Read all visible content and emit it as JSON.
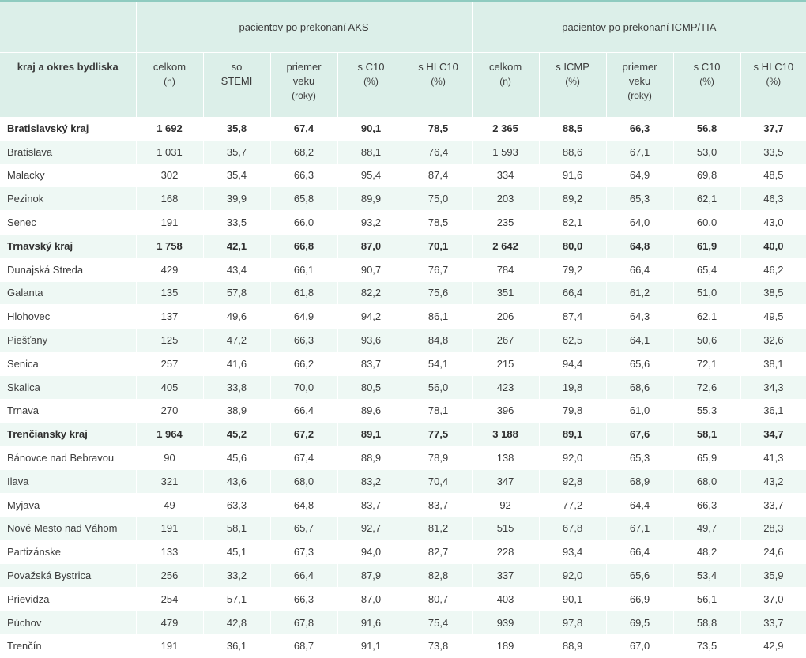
{
  "groups": {
    "aks": "pacientov po prekonaní AKS",
    "icmp": "pacientov po prekonaní ICMP/TIA"
  },
  "columns": {
    "name": "kraj a okres bydliska",
    "aks": [
      {
        "l1": "celkom",
        "l2": "(n)"
      },
      {
        "l1": "so",
        "l2": "STEMI"
      },
      {
        "l1": "priemer",
        "l2": "veku",
        "l3": "(roky)"
      },
      {
        "l1": "s C10",
        "l2": "(%)"
      },
      {
        "l1": "s HI C10",
        "l2": "(%)"
      }
    ],
    "icmp": [
      {
        "l1": "celkom",
        "l2": "(n)"
      },
      {
        "l1": "s ICMP",
        "l2": "(%)"
      },
      {
        "l1": "priemer",
        "l2": "veku",
        "l3": "(roky)"
      },
      {
        "l1": "s C10",
        "l2": "(%)"
      },
      {
        "l1": "s HI C10",
        "l2": "(%)"
      }
    ]
  },
  "rows": [
    {
      "name": "Bratislavský kraj",
      "region": true,
      "values": [
        "1 692",
        "35,8",
        "67,4",
        "90,1",
        "78,5",
        "2 365",
        "88,5",
        "66,3",
        "56,8",
        "37,7"
      ]
    },
    {
      "name": "Bratislava",
      "region": false,
      "values": [
        "1 031",
        "35,7",
        "68,2",
        "88,1",
        "76,4",
        "1 593",
        "88,6",
        "67,1",
        "53,0",
        "33,5"
      ]
    },
    {
      "name": "Malacky",
      "region": false,
      "values": [
        "302",
        "35,4",
        "66,3",
        "95,4",
        "87,4",
        "334",
        "91,6",
        "64,9",
        "69,8",
        "48,5"
      ]
    },
    {
      "name": "Pezinok",
      "region": false,
      "values": [
        "168",
        "39,9",
        "65,8",
        "89,9",
        "75,0",
        "203",
        "89,2",
        "65,3",
        "62,1",
        "46,3"
      ]
    },
    {
      "name": "Senec",
      "region": false,
      "values": [
        "191",
        "33,5",
        "66,0",
        "93,2",
        "78,5",
        "235",
        "82,1",
        "64,0",
        "60,0",
        "43,0"
      ]
    },
    {
      "name": "Trnavský kraj",
      "region": true,
      "values": [
        "1 758",
        "42,1",
        "66,8",
        "87,0",
        "70,1",
        "2 642",
        "80,0",
        "64,8",
        "61,9",
        "40,0"
      ]
    },
    {
      "name": "Dunajská Streda",
      "region": false,
      "values": [
        "429",
        "43,4",
        "66,1",
        "90,7",
        "76,7",
        "784",
        "79,2",
        "66,4",
        "65,4",
        "46,2"
      ]
    },
    {
      "name": "Galanta",
      "region": false,
      "values": [
        "135",
        "57,8",
        "61,8",
        "82,2",
        "75,6",
        "351",
        "66,4",
        "61,2",
        "51,0",
        "38,5"
      ]
    },
    {
      "name": "Hlohovec",
      "region": false,
      "values": [
        "137",
        "49,6",
        "64,9",
        "94,2",
        "86,1",
        "206",
        "87,4",
        "64,3",
        "62,1",
        "49,5"
      ]
    },
    {
      "name": "Piešťany",
      "region": false,
      "values": [
        "125",
        "47,2",
        "66,3",
        "93,6",
        "84,8",
        "267",
        "62,5",
        "64,1",
        "50,6",
        "32,6"
      ]
    },
    {
      "name": "Senica",
      "region": false,
      "values": [
        "257",
        "41,6",
        "66,2",
        "83,7",
        "54,1",
        "215",
        "94,4",
        "65,6",
        "72,1",
        "38,1"
      ]
    },
    {
      "name": "Skalica",
      "region": false,
      "values": [
        "405",
        "33,8",
        "70,0",
        "80,5",
        "56,0",
        "423",
        "19,8",
        "68,6",
        "72,6",
        "34,3"
      ]
    },
    {
      "name": "Trnava",
      "region": false,
      "values": [
        "270",
        "38,9",
        "66,4",
        "89,6",
        "78,1",
        "396",
        "79,8",
        "61,0",
        "55,3",
        "36,1"
      ]
    },
    {
      "name": "Trenčiansky kraj",
      "region": true,
      "values": [
        "1 964",
        "45,2",
        "67,2",
        "89,1",
        "77,5",
        "3 188",
        "89,1",
        "67,6",
        "58,1",
        "34,7"
      ]
    },
    {
      "name": "Bánovce nad Bebravou",
      "region": false,
      "values": [
        "90",
        "45,6",
        "67,4",
        "88,9",
        "78,9",
        "138",
        "92,0",
        "65,3",
        "65,9",
        "41,3"
      ]
    },
    {
      "name": "Ilava",
      "region": false,
      "values": [
        "321",
        "43,6",
        "68,0",
        "83,2",
        "70,4",
        "347",
        "92,8",
        "68,9",
        "68,0",
        "43,2"
      ]
    },
    {
      "name": "Myjava",
      "region": false,
      "values": [
        "49",
        "63,3",
        "64,8",
        "83,7",
        "83,7",
        "92",
        "77,2",
        "64,4",
        "66,3",
        "33,7"
      ]
    },
    {
      "name": "Nové Mesto nad Váhom",
      "region": false,
      "values": [
        "191",
        "58,1",
        "65,7",
        "92,7",
        "81,2",
        "515",
        "67,8",
        "67,1",
        "49,7",
        "28,3"
      ]
    },
    {
      "name": "Partizánske",
      "region": false,
      "values": [
        "133",
        "45,1",
        "67,3",
        "94,0",
        "82,7",
        "228",
        "93,4",
        "66,4",
        "48,2",
        "24,6"
      ]
    },
    {
      "name": "Považská Bystrica",
      "region": false,
      "values": [
        "256",
        "33,2",
        "66,4",
        "87,9",
        "82,8",
        "337",
        "92,0",
        "65,6",
        "53,4",
        "35,9"
      ]
    },
    {
      "name": "Prievidza",
      "region": false,
      "values": [
        "254",
        "57,1",
        "66,3",
        "87,0",
        "80,7",
        "403",
        "90,1",
        "66,9",
        "56,1",
        "37,0"
      ]
    },
    {
      "name": "Púchov",
      "region": false,
      "values": [
        "479",
        "42,8",
        "67,8",
        "91,6",
        "75,4",
        "939",
        "97,8",
        "69,5",
        "58,8",
        "33,7"
      ]
    },
    {
      "name": "Trenčín",
      "region": false,
      "values": [
        "191",
        "36,1",
        "68,7",
        "91,1",
        "73,8",
        "189",
        "88,9",
        "67,0",
        "73,5",
        "42,9"
      ]
    }
  ]
}
